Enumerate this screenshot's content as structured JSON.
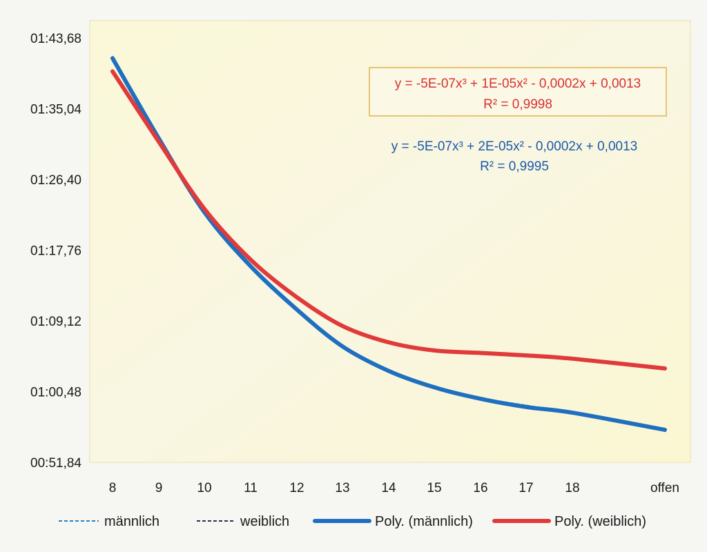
{
  "chart_data": {
    "type": "line",
    "title": "",
    "xlabel": "",
    "ylabel": "",
    "categories": [
      "8",
      "9",
      "10",
      "11",
      "12",
      "13",
      "14",
      "15",
      "16",
      "17",
      "18",
      "offen"
    ],
    "y_ticks": [
      "00:51,84",
      "01:00,48",
      "01:09,12",
      "01:17,76",
      "01:26,40",
      "01:35,04",
      "01:43,68"
    ],
    "ylim": [
      51.84,
      103.68
    ],
    "y_unit_note": "",
    "grid": false,
    "legend_position": "bottom",
    "series": [
      {
        "name": "männlich",
        "style": "dashed",
        "color": "#2a7fc0",
        "values": [
          101.4,
          91.3,
          82.5,
          76.0,
          70.6,
          66.1,
          63.0,
          61.0,
          59.7,
          58.8,
          57.9,
          null
        ]
      },
      {
        "name": "weiblich",
        "style": "dashed",
        "color": "#3a2a4a",
        "values": [
          99.7,
          91.0,
          82.9,
          76.8,
          72.0,
          68.5,
          66.5,
          65.5,
          65.2,
          64.9,
          64.5,
          null
        ]
      },
      {
        "name": "Poly. (männlich)",
        "style": "solid",
        "color": "#1f6fc0",
        "values": [
          101.2,
          91.4,
          82.4,
          75.8,
          70.5,
          66.0,
          63.0,
          61.0,
          59.6,
          58.6,
          57.9,
          55.8
        ]
      },
      {
        "name": "Poly. (weiblich)",
        "style": "solid",
        "color": "#e03a3a",
        "values": [
          99.6,
          91.0,
          82.8,
          76.6,
          72.0,
          68.5,
          66.5,
          65.5,
          65.2,
          64.9,
          64.5,
          63.3
        ]
      }
    ],
    "annotations": [
      {
        "series": "Poly. (weiblich)",
        "equation": "y = -5E-07x³ + 1E-05x² - 0,0002x + 0,0013",
        "r2": "R² = 0,9998",
        "color": "#d83030",
        "boxed": true
      },
      {
        "series": "Poly. (männlich)",
        "equation": "y = -5E-07x³ + 2E-05x² - 0,0002x + 0,0013",
        "r2": "R² = 0,9995",
        "color": "#1a5aa8",
        "boxed": false
      }
    ]
  }
}
